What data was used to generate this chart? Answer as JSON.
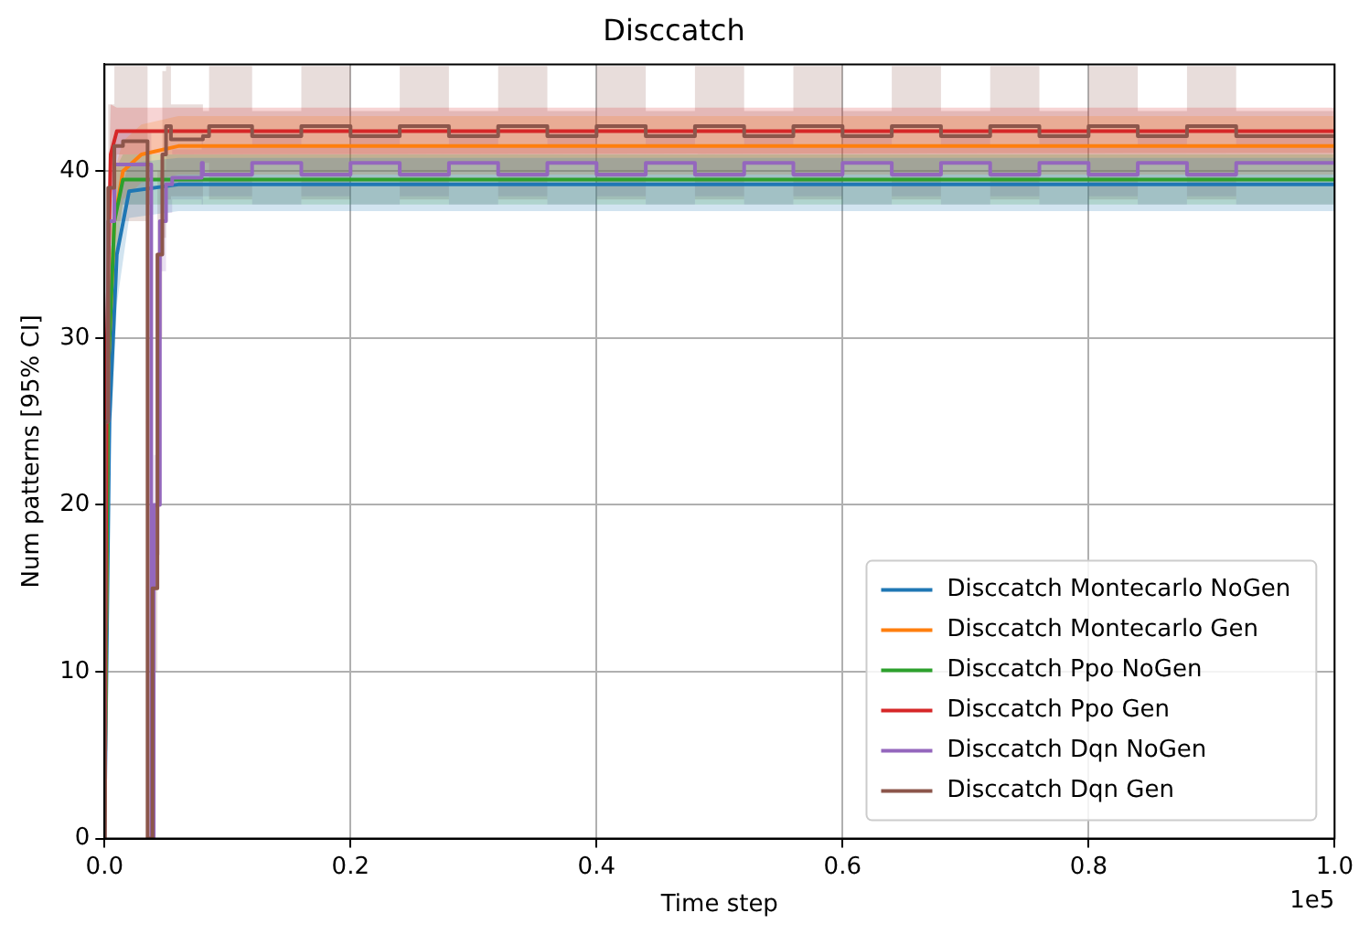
{
  "chart_data": {
    "type": "line",
    "title": "Disccatch",
    "xlabel": "Time step",
    "ylabel": "Num patterns [95% CI]",
    "annotations": [
      "1e5"
    ],
    "xlim": [
      0,
      1
    ],
    "xticks": [
      {
        "value": 0,
        "label": "0.0"
      },
      0.2,
      0.4,
      0.6,
      0.8,
      {
        "value": 1,
        "label": "1.0"
      }
    ],
    "ylim": [
      0,
      46.4
    ],
    "yticks": [
      0,
      10,
      20,
      30,
      40
    ],
    "grid": true,
    "legend": "bottom right",
    "series": [
      {
        "name": "Disccatch Montecarlo NoGen",
        "color": "#1f77b4",
        "x": [
          0,
          0.004,
          0.01,
          0.02,
          0.06,
          1
        ],
        "values": [
          0,
          25,
          35,
          38.8,
          39.2,
          39.2
        ],
        "lower": [
          0,
          22,
          32,
          37.2,
          37.6,
          37.6
        ],
        "upper": [
          0,
          28,
          38,
          40.5,
          40.8,
          40.8
        ]
      },
      {
        "name": "Disccatch Montecarlo Gen",
        "color": "#ff7f0e",
        "x": [
          0,
          0.003,
          0.008,
          0.015,
          0.03,
          0.06,
          1
        ],
        "values": [
          0,
          28,
          37,
          40,
          41,
          41.5,
          41.5
        ],
        "lower": [
          0,
          25,
          34,
          38.3,
          39.3,
          39.8,
          39.8
        ],
        "upper": [
          0,
          31,
          40,
          41.8,
          42.8,
          43.3,
          43.3
        ]
      },
      {
        "name": "Disccatch Ppo NoGen",
        "color": "#2ca02c",
        "x": [
          0,
          0.003,
          0.008,
          0.015,
          1
        ],
        "values": [
          0,
          28,
          37,
          39.5,
          39.5
        ],
        "lower": [
          0,
          25,
          34,
          38,
          38
        ],
        "upper": [
          0,
          31,
          40,
          41,
          41
        ]
      },
      {
        "name": "Disccatch Ppo Gen",
        "color": "#d62728",
        "x": [
          0,
          0.002,
          0.005,
          0.01,
          1
        ],
        "values": [
          0,
          30,
          41,
          42.4,
          42.4
        ],
        "lower": [
          0,
          26,
          38,
          41,
          41.1
        ],
        "upper": [
          0,
          34,
          44,
          43.8,
          43.8
        ]
      },
      {
        "name": "Disccatch Dqn NoGen",
        "color": "#9467bd",
        "type": "step",
        "x": [
          0,
          0.003,
          0.008,
          0.02,
          0.038,
          0.04,
          0.045,
          0.05,
          0.055,
          0.079,
          0.08,
          0.12,
          0.16,
          0.2,
          0.24,
          0.28,
          0.32,
          0.36,
          0.4,
          0.44,
          0.48,
          0.52,
          0.56,
          0.6,
          0.64,
          0.68,
          0.72,
          0.76,
          0.8,
          0.84,
          0.88,
          0.92,
          0.96,
          1
        ],
        "values": [
          0,
          25,
          37,
          40.4,
          40.4,
          0,
          20,
          37,
          39.2,
          39.6,
          40.5,
          39.8,
          40.5,
          39.8,
          40.5,
          39.8,
          40.5,
          39.8,
          40.5,
          39.8,
          40.5,
          39.8,
          40.5,
          39.8,
          40.5,
          39.8,
          40.5,
          39.8,
          40.5,
          39.8,
          40.5,
          39.8,
          40.5,
          40.5
        ],
        "lower": [
          0,
          22,
          34,
          38,
          38,
          0,
          17,
          34,
          37.5,
          38.3,
          38,
          38.5,
          38,
          38.5,
          38,
          38.5,
          38,
          38.5,
          38,
          38.5,
          38,
          38.5,
          38,
          38.5,
          38,
          38.5,
          38,
          38.5,
          38,
          38.5,
          38,
          38.5,
          38,
          38
        ],
        "upper": [
          0,
          28,
          40,
          42.3,
          42.3,
          0,
          23,
          40,
          41,
          41.3,
          42.3,
          41.5,
          42.3,
          41.5,
          42.3,
          41.5,
          42.3,
          41.5,
          42.3,
          41.5,
          42.3,
          41.5,
          42.3,
          41.5,
          42.3,
          41.5,
          42.3,
          41.5,
          42.3,
          41.5,
          42.3,
          41.5,
          42.3,
          42.3
        ]
      },
      {
        "name": "Disccatch Dqn Gen",
        "color": "#8c564b",
        "type": "step",
        "x": [
          0,
          0.003,
          0.008,
          0.015,
          0.035,
          0.039,
          0.043,
          0.047,
          0.05,
          0.054,
          0.08,
          0.085,
          0.12,
          0.16,
          0.2,
          0.24,
          0.28,
          0.32,
          0.36,
          0.4,
          0.44,
          0.48,
          0.52,
          0.56,
          0.6,
          0.64,
          0.68,
          0.72,
          0.76,
          0.8,
          0.84,
          0.88,
          0.92,
          0.96,
          1
        ],
        "values": [
          0,
          25,
          39,
          41.5,
          41.8,
          0,
          15,
          35,
          41,
          42.7,
          41.9,
          42.1,
          42.7,
          42.1,
          42.7,
          42.1,
          42.7,
          42.1,
          42.7,
          42.1,
          42.7,
          42.1,
          42.7,
          42.1,
          42.7,
          42.1,
          42.7,
          42.1,
          42.7,
          42.1,
          42.7,
          42.1,
          42.7,
          42.1,
          42.1
        ],
        "lower": [
          0,
          20,
          35,
          37,
          37,
          0,
          10,
          30,
          36,
          38.3,
          38.5,
          40.5,
          38.3,
          40.5,
          38.3,
          40.5,
          38.3,
          40.5,
          38.3,
          40.5,
          38.3,
          40.5,
          38.3,
          40.5,
          38.3,
          40.5,
          38.3,
          40.5,
          38.3,
          40.5,
          38.3,
          40.5,
          38.3,
          40.5,
          40.5
        ],
        "upper": [
          0,
          30,
          44,
          46.3,
          46.3,
          0,
          20,
          40,
          46,
          46.3,
          44,
          43.6,
          46.3,
          43.6,
          46.3,
          43.6,
          46.3,
          43.6,
          46.3,
          43.6,
          46.3,
          43.6,
          46.3,
          43.6,
          46.3,
          43.6,
          46.3,
          43.6,
          46.3,
          43.6,
          46.3,
          43.6,
          46.3,
          43.6,
          43.6
        ]
      }
    ]
  }
}
